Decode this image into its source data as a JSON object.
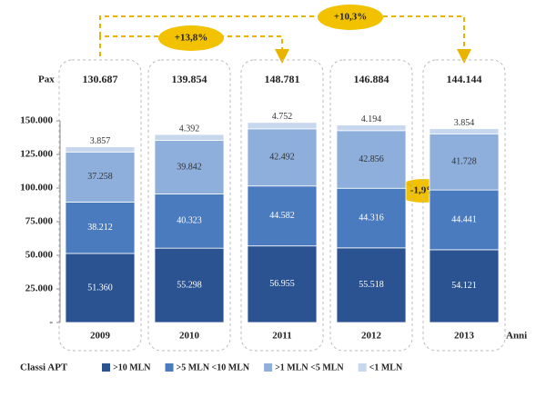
{
  "chart_data": {
    "type": "stacked_bar",
    "y_label": "Pax",
    "x_label": "Anni",
    "legend_title": "Classi APT",
    "categories": [
      "2009",
      "2010",
      "2011",
      "2012",
      "2013"
    ],
    "series": [
      {
        "name": ">10 MLN",
        "color": "#2b5391",
        "values": [
          51360,
          55298,
          56955,
          55518,
          54121
        ],
        "value_labels": [
          "51.360",
          "55.298",
          "56.955",
          "55.518",
          "54.121"
        ]
      },
      {
        "name": ">5 MLN <10 MLN",
        "color": "#4a7bbf",
        "values": [
          38212,
          40323,
          44582,
          44316,
          44441
        ],
        "value_labels": [
          "38.212",
          "40.323",
          "44.582",
          "44.316",
          "44.441"
        ]
      },
      {
        "name": ">1 MLN <5 MLN",
        "color": "#8eafdc",
        "values": [
          37258,
          39842,
          42492,
          42856,
          41728
        ],
        "value_labels": [
          "37.258",
          "39.842",
          "42.492",
          "42.856",
          "41.728"
        ]
      },
      {
        "name": "<1 MLN",
        "color": "#c6d7ee",
        "values": [
          3857,
          4392,
          4752,
          4194,
          3854
        ],
        "value_labels": [
          "3.857",
          "4.392",
          "4.752",
          "4.194",
          "3.854"
        ]
      }
    ],
    "totals": {
      "values": [
        130687,
        139854,
        148781,
        146884,
        144144
      ],
      "value_labels": [
        "130.687",
        "139.854",
        "148.781",
        "146.884",
        "144.144"
      ]
    },
    "annotations": [
      "+13,8%",
      "+10,3%",
      "-1,9%"
    ],
    "ylim": [
      0,
      150000
    ],
    "yticks": [
      {
        "value": 0,
        "label": "-"
      },
      {
        "value": 25000,
        "label": "25.000"
      },
      {
        "value": 50000,
        "label": "50.000"
      },
      {
        "value": 75000,
        "label": "75.000"
      },
      {
        "value": 100000,
        "label": "100.000"
      },
      {
        "value": 125000,
        "label": "125.000"
      },
      {
        "value": 150000,
        "label": "150.000"
      }
    ]
  }
}
